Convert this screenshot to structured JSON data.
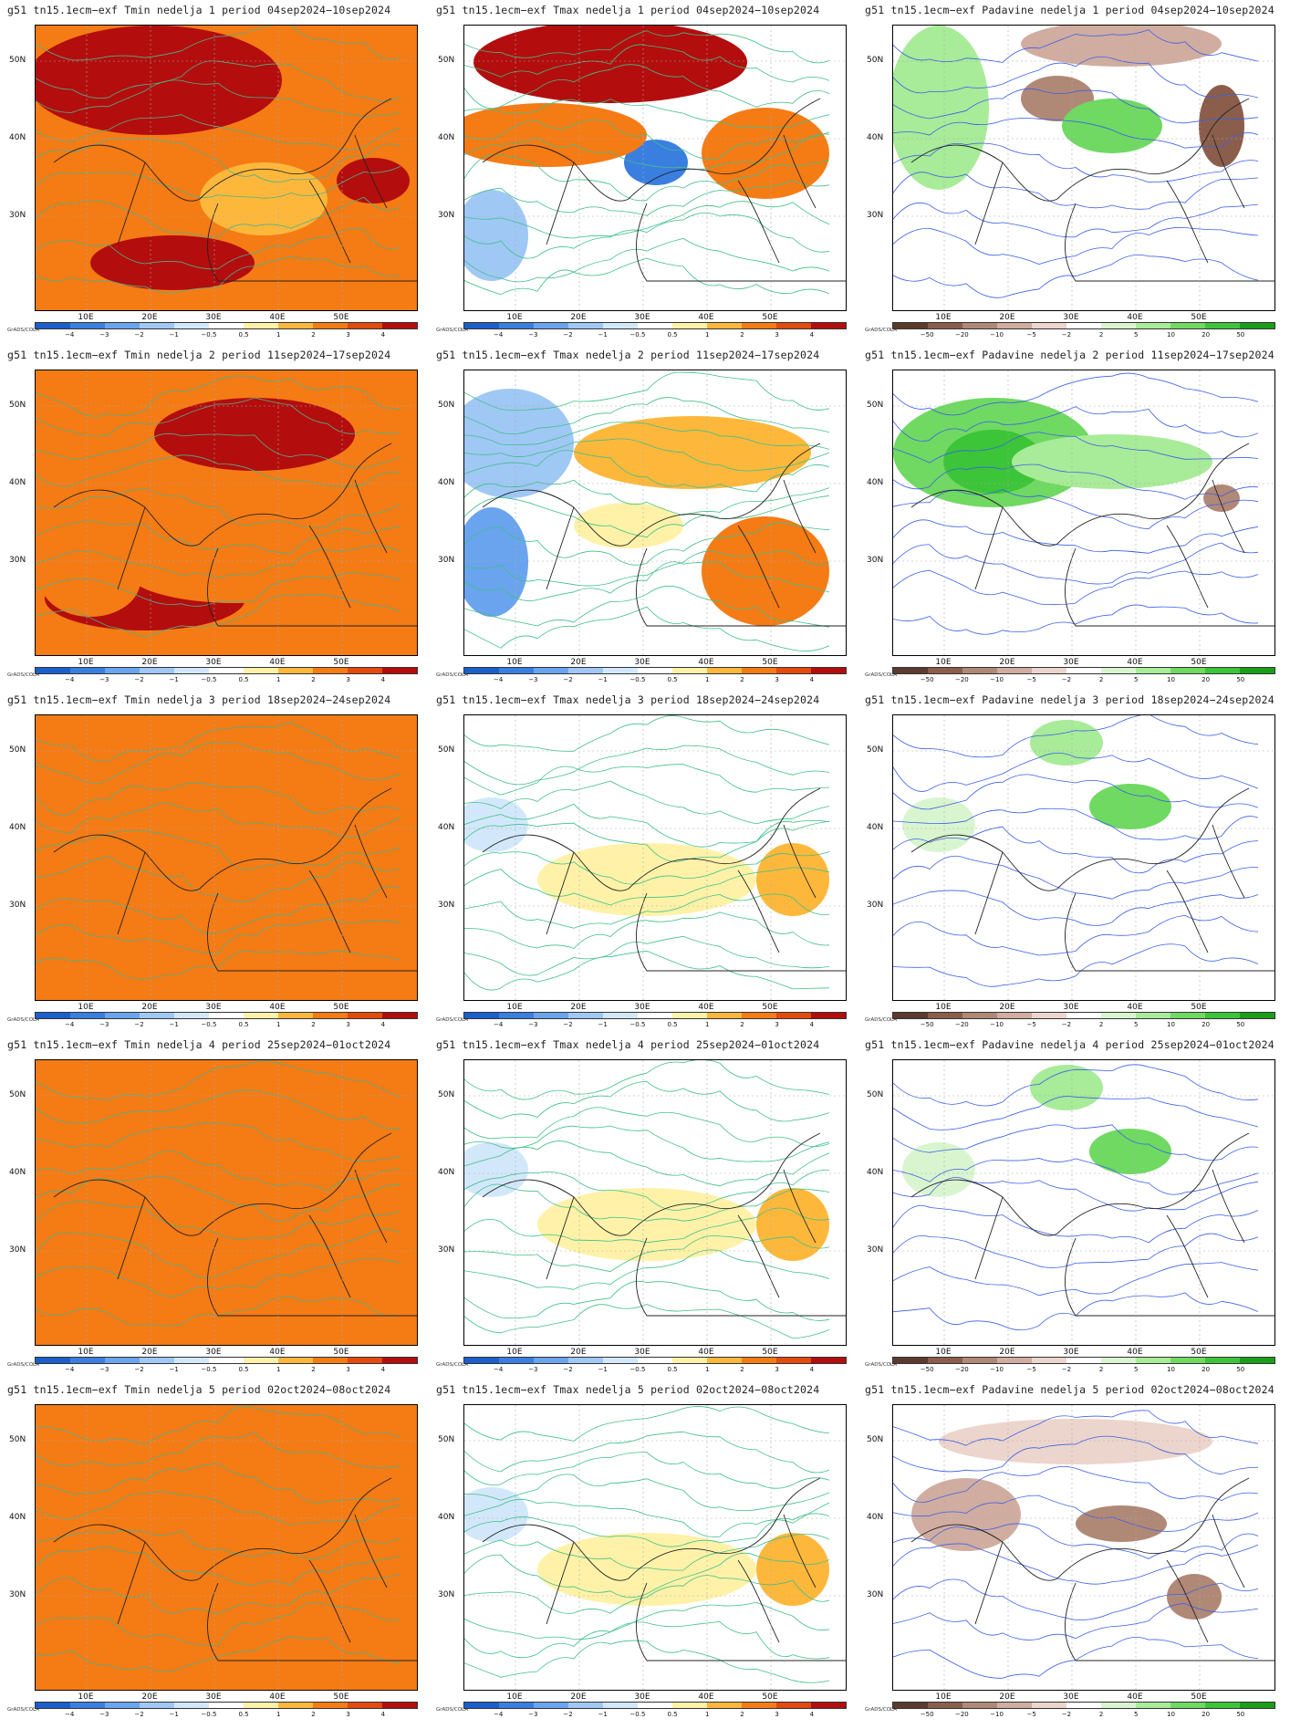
{
  "rows": [
    {
      "week": "1",
      "period": "04sep2024−10sep2024"
    },
    {
      "week": "2",
      "period": "11sep2024−17sep2024"
    },
    {
      "week": "3",
      "period": "18sep2024−24sep2024"
    },
    {
      "week": "4",
      "period": "25sep2024−01oct2024"
    },
    {
      "week": "5",
      "period": "02oct2024−08oct2024"
    }
  ],
  "title_prefix": "g51  tn15.1ecm−exf",
  "vars": [
    "Tmin",
    "Tmax",
    "Padavine"
  ],
  "nedelja_word": "nedelja",
  "period_word": "period",
  "lat_labels": [
    "50N",
    "40N",
    "30N"
  ],
  "lon_labels": [
    "10E",
    "20E",
    "30E",
    "40E",
    "50E"
  ],
  "grads_label": "GrADS/COLA",
  "temp_scale": {
    "labels": [
      "−4",
      "−3",
      "−2",
      "−1",
      "−0.5",
      "0.5",
      "1",
      "2",
      "3",
      "4"
    ],
    "colors": [
      "#1a5fcc",
      "#3a7fe0",
      "#6aa4ee",
      "#a0c8f5",
      "#d2e8fa",
      "#ffffff",
      "#fff2a8",
      "#fdb83c",
      "#f57b15",
      "#e24a0e",
      "#b30d0d"
    ]
  },
  "prec_scale": {
    "labels": [
      "−50",
      "−20",
      "−10",
      "−5",
      "−2",
      "2",
      "5",
      "10",
      "20",
      "50"
    ],
    "colors": [
      "#5c3a2e",
      "#8b5e4b",
      "#b08876",
      "#d0ada0",
      "#ecd5cc",
      "#ffffff",
      "#d9f5d0",
      "#a8eb98",
      "#6fd962",
      "#3cc538",
      "#1a9e19"
    ]
  },
  "row_fields": [
    [
      "dark",
      "blue_bits",
      "dry"
    ],
    [
      "warm",
      "blue",
      "wet"
    ],
    [
      "mid",
      "neutral",
      "light"
    ],
    [
      "mid",
      "neutral",
      "light"
    ],
    [
      "mid",
      "neutral",
      "mixed"
    ]
  ]
}
